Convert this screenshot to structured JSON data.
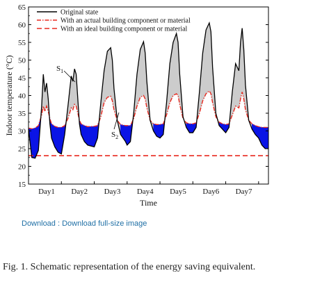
{
  "chart_data": {
    "type": "line",
    "ylabel": "Indoor temperature (°C)",
    "xlabel": "Time",
    "ylim": [
      15,
      65
    ],
    "yticks": [
      15,
      20,
      25,
      30,
      35,
      40,
      45,
      50,
      55,
      60,
      65
    ],
    "xlim": [
      0,
      7.3
    ],
    "categories": [
      "Day1",
      "Day2",
      "Day3",
      "Day4",
      "Day5",
      "Day6",
      "Day7"
    ],
    "category_positions": [
      0.55,
      1.55,
      2.55,
      3.55,
      4.55,
      5.55,
      6.55
    ],
    "legend_position": "top-left",
    "series": [
      {
        "name": "Original state",
        "style": "solid",
        "color": "#000000",
        "x": [
          0.0,
          0.1,
          0.2,
          0.3,
          0.4,
          0.45,
          0.5,
          0.55,
          0.6,
          0.65,
          0.7,
          0.8,
          0.9,
          1.0,
          1.1,
          1.2,
          1.3,
          1.35,
          1.4,
          1.45,
          1.5,
          1.55,
          1.6,
          1.7,
          1.8,
          2.0,
          2.1,
          2.2,
          2.3,
          2.4,
          2.5,
          2.55,
          2.6,
          2.7,
          2.8,
          2.95,
          3.0,
          3.1,
          3.2,
          3.3,
          3.4,
          3.5,
          3.55,
          3.6,
          3.7,
          3.8,
          3.9,
          4.0,
          4.1,
          4.2,
          4.3,
          4.4,
          4.5,
          4.55,
          4.6,
          4.7,
          4.8,
          4.9,
          5.0,
          5.1,
          5.2,
          5.3,
          5.4,
          5.5,
          5.55,
          5.6,
          5.7,
          5.8,
          5.9,
          6.0,
          6.1,
          6.2,
          6.3,
          6.4,
          6.45,
          6.5,
          6.55,
          6.6,
          6.7,
          6.8,
          6.9,
          7.0,
          7.1,
          7.2,
          7.3
        ],
        "values": [
          30.5,
          22.5,
          22.3,
          24.5,
          37.0,
          46.0,
          41.0,
          43.5,
          39.0,
          32.0,
          28.0,
          25.5,
          24.0,
          23.5,
          29.0,
          37.0,
          45.5,
          44.0,
          47.5,
          46.0,
          39.0,
          32.0,
          29.0,
          27.0,
          26.0,
          25.5,
          28.0,
          38.0,
          47.0,
          52.5,
          53.5,
          50.0,
          42.0,
          33.0,
          29.0,
          27.0,
          26.0,
          27.0,
          35.0,
          46.0,
          53.0,
          55.2,
          52.0,
          44.0,
          33.0,
          30.0,
          28.5,
          28.0,
          29.0,
          38.0,
          49.0,
          55.0,
          57.5,
          55.0,
          46.0,
          34.0,
          31.0,
          29.5,
          29.5,
          31.0,
          41.0,
          52.0,
          58.5,
          60.5,
          58.0,
          48.0,
          35.0,
          31.5,
          30.5,
          29.5,
          31.0,
          41.0,
          49.0,
          47.0,
          55.0,
          59.0,
          53.0,
          43.0,
          33.0,
          30.5,
          29.0,
          28.0,
          26.0,
          25.0,
          25.0
        ]
      },
      {
        "name": "With an actual building component or material",
        "style": "dash-dot",
        "color": "#e8281e",
        "x": [
          0.0,
          0.1,
          0.2,
          0.3,
          0.4,
          0.45,
          0.5,
          0.55,
          0.6,
          0.65,
          0.7,
          0.8,
          0.9,
          1.0,
          1.1,
          1.2,
          1.3,
          1.35,
          1.4,
          1.45,
          1.5,
          1.55,
          1.6,
          1.7,
          1.8,
          2.0,
          2.1,
          2.2,
          2.3,
          2.4,
          2.5,
          2.55,
          2.6,
          2.7,
          2.8,
          2.95,
          3.0,
          3.1,
          3.2,
          3.3,
          3.4,
          3.5,
          3.55,
          3.6,
          3.7,
          3.8,
          3.9,
          4.0,
          4.1,
          4.2,
          4.3,
          4.4,
          4.5,
          4.55,
          4.6,
          4.7,
          4.8,
          4.9,
          5.0,
          5.1,
          5.2,
          5.3,
          5.4,
          5.5,
          5.55,
          5.6,
          5.7,
          5.8,
          5.9,
          6.0,
          6.1,
          6.2,
          6.3,
          6.4,
          6.45,
          6.5,
          6.55,
          6.6,
          6.7,
          6.8,
          6.9,
          7.0,
          7.1,
          7.2,
          7.3
        ],
        "values": [
          30.8,
          30.6,
          30.8,
          31.5,
          34.5,
          37.0,
          35.5,
          37.0,
          35.5,
          33.5,
          32.0,
          31.3,
          31.0,
          31.0,
          31.5,
          33.5,
          36.5,
          36.0,
          37.5,
          37.0,
          35.0,
          33.0,
          32.0,
          31.5,
          31.2,
          31.3,
          31.5,
          34.0,
          38.0,
          39.5,
          39.8,
          38.5,
          36.0,
          33.0,
          31.8,
          31.5,
          31.5,
          31.5,
          33.5,
          37.0,
          39.5,
          40.0,
          39.0,
          36.5,
          33.0,
          32.0,
          31.8,
          31.8,
          32.0,
          34.5,
          38.0,
          40.0,
          40.5,
          40.0,
          37.5,
          33.5,
          32.3,
          32.0,
          32.0,
          32.3,
          35.0,
          38.5,
          40.5,
          41.3,
          40.5,
          38.0,
          34.0,
          32.5,
          32.0,
          31.8,
          32.0,
          34.5,
          37.0,
          36.5,
          39.0,
          41.0,
          39.0,
          36.0,
          33.0,
          32.0,
          31.5,
          31.2,
          31.0,
          31.0,
          31.0
        ]
      },
      {
        "name": "With an ideal building component or material",
        "style": "dashed",
        "color": "#e8281e",
        "x": [
          0.0,
          7.3
        ],
        "values": [
          23.0,
          23.0
        ]
      }
    ],
    "annotations": [
      {
        "text": "S",
        "sub": "1",
        "region": "gray area between original state and actual material curves"
      },
      {
        "text": "S",
        "sub": "2",
        "region": "blue area below original state curve"
      }
    ],
    "fill_colors": {
      "s1": "#cccccc",
      "s2": "#0a14e6"
    }
  },
  "link": {
    "prefix": "Download : ",
    "label": "Download full-size image"
  },
  "caption": "Fig. 1. Schematic representation of the energy saving equivalent."
}
